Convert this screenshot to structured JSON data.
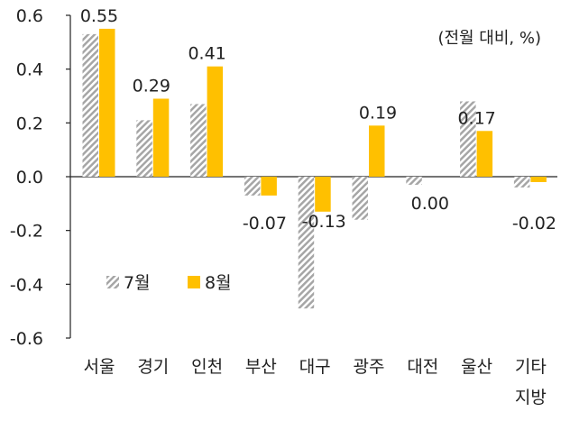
{
  "chart_data": {
    "type": "bar",
    "unit_label": "(전월 대비, %)",
    "categories": [
      [
        "서울"
      ],
      [
        "경기"
      ],
      [
        "인천"
      ],
      [
        "부산"
      ],
      [
        "대구"
      ],
      [
        "광주"
      ],
      [
        "대전"
      ],
      [
        "울산"
      ],
      [
        "기타",
        "지방"
      ]
    ],
    "series": [
      {
        "name": "7월",
        "values": [
          0.53,
          0.21,
          0.27,
          -0.07,
          -0.49,
          -0.16,
          -0.03,
          0.28,
          -0.04
        ],
        "pattern": "hatched-gray",
        "color": "#a6a6a6"
      },
      {
        "name": "8월",
        "values": [
          0.55,
          0.29,
          0.41,
          -0.07,
          -0.13,
          0.19,
          0.0,
          0.17,
          -0.02
        ],
        "pattern": "solid",
        "color": "#ffc000"
      }
    ],
    "data_labels": [
      "0.55",
      "0.29",
      "0.41",
      "-0.07",
      "-0.13",
      "0.19",
      "0.00",
      "0.17",
      "-0.02"
    ],
    "yticks": [
      "0.6",
      "0.4",
      "0.2",
      "0.0",
      "-0.2",
      "-0.4",
      "-0.6"
    ],
    "ylim": [
      -0.6,
      0.6
    ],
    "grid": false,
    "legend_position": "lower-left"
  }
}
